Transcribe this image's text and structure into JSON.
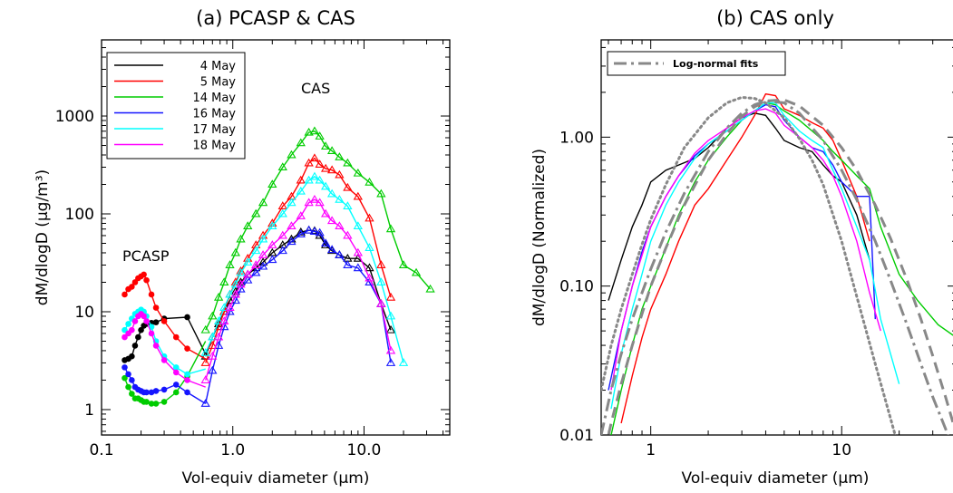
{
  "chart_data": [
    {
      "type": "line",
      "title": "(a) PCASP & CAS",
      "xlabel": "Vol-equiv diameter (μm)",
      "ylabel": "dM/dlogD (μg/m³)",
      "xscale": "log",
      "yscale": "log",
      "xlim": [
        0.1,
        45
      ],
      "ylim": [
        0.55,
        6000
      ],
      "xticks": [
        "0.1",
        "1.0",
        "10.0"
      ],
      "yticks": [
        "1",
        "10",
        "100",
        "1000"
      ],
      "annotations": [
        "PCASP",
        "CAS"
      ],
      "legend_position": "top-left",
      "colors": {
        "4 May": "#000000",
        "5 May": "#ff0000",
        "14 May": "#00cc00",
        "16 May": "#1515ff",
        "17 May": "#00ffff",
        "18 May": "#ff00ff"
      },
      "series": [
        {
          "name": "4 May",
          "pcasp_x": [
            0.15,
            0.16,
            0.17,
            0.18,
            0.19,
            0.2,
            0.21,
            0.22,
            0.24,
            0.26
          ],
          "pcasp_y": [
            3.2,
            3.3,
            3.5,
            4.5,
            5.5,
            6.5,
            7.2,
            7.5,
            7.7,
            7.8
          ],
          "pcasp_tail_x": [
            0.3,
            0.45,
            0.62
          ],
          "pcasp_tail_y": [
            8.5,
            8.8,
            3.7
          ],
          "cas_x": [
            0.62,
            0.7,
            0.78,
            0.86,
            0.95,
            1.05,
            1.15,
            1.3,
            1.5,
            1.7,
            2.0,
            2.4,
            2.8,
            3.3,
            3.8,
            4.2,
            4.6,
            5.1,
            5.7,
            6.5,
            7.5,
            9.0,
            11.0,
            13.5,
            16.0
          ],
          "cas_y": [
            3.5,
            5.5,
            7.5,
            10,
            13,
            16,
            20,
            24,
            28,
            32,
            40,
            48,
            55,
            65,
            68,
            67,
            60,
            48,
            42,
            38,
            35,
            35,
            28,
            12,
            6.5
          ]
        },
        {
          "name": "5 May",
          "pcasp_x": [
            0.15,
            0.16,
            0.17,
            0.18,
            0.19,
            0.2,
            0.21,
            0.22,
            0.24,
            0.26,
            0.3,
            0.37,
            0.45,
            0.62
          ],
          "pcasp_y": [
            15,
            17,
            18,
            20,
            22,
            23,
            24,
            21,
            15,
            11,
            8,
            5.5,
            4.2,
            3.3
          ],
          "cas_x": [
            0.62,
            0.7,
            0.78,
            0.86,
            0.95,
            1.05,
            1.15,
            1.3,
            1.5,
            1.7,
            2.0,
            2.4,
            2.8,
            3.3,
            3.8,
            4.2,
            4.6,
            5.1,
            5.7,
            6.5,
            7.5,
            9.0,
            11.0,
            13.5,
            16.0
          ],
          "cas_y": [
            3.0,
            4.5,
            7,
            10,
            15,
            20,
            26,
            35,
            48,
            60,
            80,
            120,
            150,
            220,
            330,
            370,
            320,
            290,
            280,
            250,
            185,
            150,
            90,
            30,
            14
          ]
        },
        {
          "name": "14 May",
          "pcasp_x": [
            0.15,
            0.16,
            0.17,
            0.18,
            0.19,
            0.2,
            0.21,
            0.22,
            0.24,
            0.26,
            0.3,
            0.37,
            0.45,
            0.62
          ],
          "pcasp_y": [
            2.1,
            1.7,
            1.45,
            1.3,
            1.3,
            1.25,
            1.2,
            1.2,
            1.15,
            1.15,
            1.2,
            1.5,
            2.2,
            5.0
          ],
          "cas_x": [
            0.62,
            0.7,
            0.78,
            0.86,
            0.95,
            1.05,
            1.15,
            1.3,
            1.5,
            1.7,
            2.0,
            2.4,
            2.8,
            3.3,
            3.8,
            4.2,
            4.6,
            5.1,
            5.7,
            6.5,
            7.5,
            9.0,
            11.0,
            13.5,
            16.0,
            20.0,
            25.0,
            32.0
          ],
          "cas_y": [
            6.5,
            9,
            14,
            20,
            30,
            40,
            55,
            75,
            100,
            130,
            200,
            300,
            400,
            530,
            680,
            700,
            620,
            490,
            440,
            380,
            330,
            260,
            210,
            160,
            70,
            30,
            25,
            17
          ]
        },
        {
          "name": "16 May",
          "pcasp_x": [
            0.15,
            0.16,
            0.17,
            0.18,
            0.19,
            0.2,
            0.21,
            0.22,
            0.24,
            0.26,
            0.3,
            0.37,
            0.45,
            0.62
          ],
          "pcasp_y": [
            2.7,
            2.3,
            2.0,
            1.7,
            1.6,
            1.55,
            1.5,
            1.5,
            1.5,
            1.55,
            1.6,
            1.8,
            1.5,
            1.15
          ],
          "cas_x": [
            0.62,
            0.7,
            0.78,
            0.86,
            0.95,
            1.05,
            1.15,
            1.3,
            1.5,
            1.7,
            2.0,
            2.4,
            2.8,
            3.3,
            3.8,
            4.2,
            4.6,
            5.1,
            5.7,
            6.5,
            7.5,
            9.0,
            11.0,
            13.5,
            16.0
          ],
          "cas_y": [
            1.15,
            2.5,
            4.5,
            7,
            10,
            13,
            17,
            21,
            25,
            29,
            34,
            42,
            52,
            62,
            68,
            66,
            64,
            50,
            43,
            38,
            30,
            28,
            20,
            12,
            3.0
          ]
        },
        {
          "name": "17 May",
          "pcasp_x": [
            0.15,
            0.16,
            0.17,
            0.18,
            0.19,
            0.2,
            0.21,
            0.22,
            0.24,
            0.26,
            0.3,
            0.37,
            0.45,
            0.62
          ],
          "pcasp_y": [
            6.5,
            7.5,
            8.5,
            9.5,
            10,
            10.5,
            10,
            9,
            7,
            5,
            3.5,
            2.7,
            2.3,
            2.6
          ],
          "cas_x": [
            0.62,
            0.7,
            0.78,
            0.86,
            0.95,
            1.05,
            1.15,
            1.3,
            1.5,
            1.7,
            2.0,
            2.4,
            2.8,
            3.3,
            3.8,
            4.2,
            4.6,
            5.1,
            5.7,
            6.5,
            7.5,
            9.0,
            11.0,
            13.5,
            16.0,
            20.0
          ],
          "cas_y": [
            3.8,
            5.5,
            8,
            11,
            15,
            19,
            25,
            32,
            42,
            55,
            75,
            100,
            130,
            170,
            220,
            240,
            220,
            190,
            160,
            140,
            120,
            75,
            45,
            20,
            9,
            3.0
          ]
        },
        {
          "name": "18 May",
          "pcasp_x": [
            0.15,
            0.16,
            0.17,
            0.18,
            0.19,
            0.2,
            0.21,
            0.22,
            0.24,
            0.26,
            0.3,
            0.37,
            0.45,
            0.62
          ],
          "pcasp_y": [
            5.5,
            6.0,
            6.5,
            8.0,
            9.0,
            9.5,
            9.0,
            8.0,
            6.0,
            4.5,
            3.2,
            2.4,
            2.0,
            1.7
          ],
          "cas_x": [
            0.62,
            0.7,
            0.78,
            0.86,
            0.95,
            1.05,
            1.15,
            1.3,
            1.5,
            1.7,
            2.0,
            2.4,
            2.8,
            3.3,
            3.8,
            4.2,
            4.6,
            5.1,
            5.7,
            6.5,
            7.5,
            9.0,
            11.0,
            13.5,
            16.0
          ],
          "cas_y": [
            2.0,
            3.5,
            5.5,
            8,
            11,
            15,
            19,
            24,
            30,
            38,
            48,
            60,
            75,
            95,
            130,
            140,
            130,
            100,
            85,
            75,
            60,
            40,
            22,
            12,
            4.0
          ]
        }
      ]
    },
    {
      "type": "line",
      "title": "(b) CAS only",
      "xlabel": "Vol-equiv diameter (μm)",
      "ylabel": "dM/dlogD (Normalized)",
      "xscale": "log",
      "yscale": "log",
      "xlim": [
        0.55,
        40
      ],
      "ylim": [
        0.01,
        4.5
      ],
      "xticks": [
        "1",
        "10"
      ],
      "yticks": [
        "0.01",
        "0.10",
        "1.00"
      ],
      "legend_position": "top-left",
      "colors": {
        "4 May": "#000000",
        "5 May": "#ff0000",
        "14 May": "#00cc00",
        "16 May": "#1515ff",
        "17 May": "#00ffff",
        "18 May": "#ff00ff",
        "fit": "#888888"
      },
      "series": [
        {
          "name": "4 May",
          "x": [
            0.6,
            0.7,
            0.8,
            0.9,
            1.0,
            1.2,
            1.4,
            1.7,
            2.0,
            2.5,
            3.0,
            3.5,
            4.0,
            4.5,
            5.0,
            6.0,
            7.0,
            8.0,
            9.0,
            10.0,
            12.0,
            14.0
          ],
          "y": [
            0.08,
            0.15,
            0.25,
            0.35,
            0.5,
            0.6,
            0.65,
            0.72,
            0.85,
            1.15,
            1.35,
            1.45,
            1.4,
            1.15,
            0.95,
            0.85,
            0.8,
            0.65,
            0.55,
            0.5,
            0.3,
            0.15
          ]
        },
        {
          "name": "5 May",
          "x": [
            0.7,
            0.8,
            0.9,
            1.0,
            1.2,
            1.4,
            1.7,
            2.0,
            2.5,
            3.0,
            3.5,
            4.0,
            4.5,
            5.0,
            6.0,
            7.0,
            8.0,
            9.0,
            10.0,
            12.0,
            14.0
          ],
          "y": [
            0.012,
            0.025,
            0.045,
            0.07,
            0.12,
            0.2,
            0.35,
            0.45,
            0.7,
            1.0,
            1.4,
            1.95,
            1.9,
            1.55,
            1.4,
            1.25,
            1.15,
            0.95,
            0.7,
            0.4,
            0.2
          ]
        },
        {
          "name": "14 May",
          "x": [
            0.62,
            0.7,
            0.8,
            0.9,
            1.0,
            1.2,
            1.4,
            1.7,
            2.0,
            2.5,
            3.0,
            3.5,
            4.0,
            4.5,
            5.0,
            6.0,
            7.0,
            8.0,
            9.0,
            10.0,
            12.0,
            14.0,
            16.0,
            20.0,
            25.0,
            32.0,
            40.0
          ],
          "y": [
            0.01,
            0.02,
            0.04,
            0.07,
            0.1,
            0.18,
            0.3,
            0.5,
            0.7,
            1.0,
            1.3,
            1.5,
            1.7,
            1.65,
            1.5,
            1.3,
            1.1,
            0.95,
            0.8,
            0.7,
            0.55,
            0.45,
            0.25,
            0.12,
            0.08,
            0.055,
            0.045
          ]
        },
        {
          "name": "16 May",
          "x": [
            0.6,
            0.7,
            0.8,
            0.9,
            1.0,
            1.2,
            1.4,
            1.7,
            2.0,
            2.5,
            3.0,
            3.5,
            4.0,
            4.5,
            5.0,
            6.0,
            7.0,
            8.0,
            9.0,
            10.0,
            12.0,
            14.0,
            15.0
          ],
          "y": [
            0.02,
            0.05,
            0.1,
            0.17,
            0.25,
            0.4,
            0.55,
            0.75,
            0.9,
            1.1,
            1.3,
            1.5,
            1.65,
            1.6,
            1.3,
            1.0,
            0.85,
            0.8,
            0.65,
            0.5,
            0.4,
            0.4,
            0.06
          ]
        },
        {
          "name": "17 May",
          "x": [
            0.62,
            0.7,
            0.8,
            0.9,
            1.0,
            1.2,
            1.4,
            1.7,
            2.0,
            2.5,
            3.0,
            3.5,
            4.0,
            4.5,
            5.0,
            6.0,
            7.0,
            8.0,
            9.0,
            10.0,
            12.0,
            14.0,
            16.0,
            20.0
          ],
          "y": [
            0.015,
            0.035,
            0.07,
            0.12,
            0.2,
            0.35,
            0.5,
            0.72,
            0.9,
            1.1,
            1.3,
            1.5,
            1.7,
            1.7,
            1.4,
            1.1,
            0.95,
            0.85,
            0.6,
            0.45,
            0.25,
            0.15,
            0.06,
            0.022
          ]
        },
        {
          "name": "18 May",
          "x": [
            0.62,
            0.7,
            0.8,
            0.9,
            1.0,
            1.2,
            1.4,
            1.7,
            2.0,
            2.5,
            3.0,
            3.5,
            4.0,
            4.5,
            5.0,
            6.0,
            7.0,
            8.0,
            9.0,
            10.0,
            12.0,
            14.0,
            16.0
          ],
          "y": [
            0.02,
            0.05,
            0.1,
            0.16,
            0.25,
            0.4,
            0.55,
            0.78,
            0.95,
            1.15,
            1.35,
            1.5,
            1.55,
            1.45,
            1.2,
            1.0,
            0.85,
            0.7,
            0.55,
            0.4,
            0.2,
            0.09,
            0.05
          ]
        }
      ],
      "fits": [
        {
          "name": "Log-normal fits",
          "dash": "dash-dot",
          "x": [
            0.55,
            0.62,
            0.7,
            0.8,
            0.9,
            1.0,
            1.2,
            1.5,
            2.0,
            2.5,
            3.0,
            3.5,
            4.0,
            5.0,
            6.0,
            8.0,
            10.0,
            12.0,
            15.0,
            18.0,
            22.0,
            26.0,
            30.0,
            35.0,
            40.0
          ],
          "y": [
            0.01,
            0.02,
            0.035,
            0.06,
            0.09,
            0.13,
            0.23,
            0.42,
            0.8,
            1.15,
            1.45,
            1.65,
            1.75,
            1.7,
            1.45,
            0.95,
            0.6,
            0.38,
            0.2,
            0.11,
            0.055,
            0.03,
            0.018,
            0.011,
            0.007
          ]
        },
        {
          "dash": "dash",
          "x": [
            0.55,
            0.62,
            0.7,
            0.8,
            0.9,
            1.0,
            1.2,
            1.5,
            2.0,
            2.5,
            3.0,
            3.5,
            4.0,
            5.0,
            6.0,
            8.0,
            10.0,
            12.0,
            15.0,
            18.0,
            22.0,
            26.0,
            30.0,
            35.0,
            40.0
          ],
          "y": [
            0.006,
            0.012,
            0.022,
            0.04,
            0.065,
            0.1,
            0.18,
            0.35,
            0.7,
            1.05,
            1.38,
            1.6,
            1.75,
            1.78,
            1.62,
            1.2,
            0.85,
            0.6,
            0.35,
            0.21,
            0.11,
            0.06,
            0.034,
            0.018,
            0.01
          ]
        },
        {
          "dash": "dot",
          "x": [
            0.55,
            0.62,
            0.7,
            0.8,
            0.9,
            1.0,
            1.2,
            1.5,
            2.0,
            2.5,
            3.0,
            3.5,
            4.0,
            5.0,
            6.0,
            7.0,
            8.0,
            10.0,
            12.0,
            15.0,
            18.0,
            20.0
          ],
          "y": [
            0.02,
            0.04,
            0.07,
            0.12,
            0.19,
            0.28,
            0.48,
            0.85,
            1.35,
            1.7,
            1.85,
            1.82,
            1.7,
            1.35,
            0.98,
            0.7,
            0.48,
            0.2,
            0.085,
            0.03,
            0.013,
            0.008
          ]
        }
      ]
    }
  ]
}
